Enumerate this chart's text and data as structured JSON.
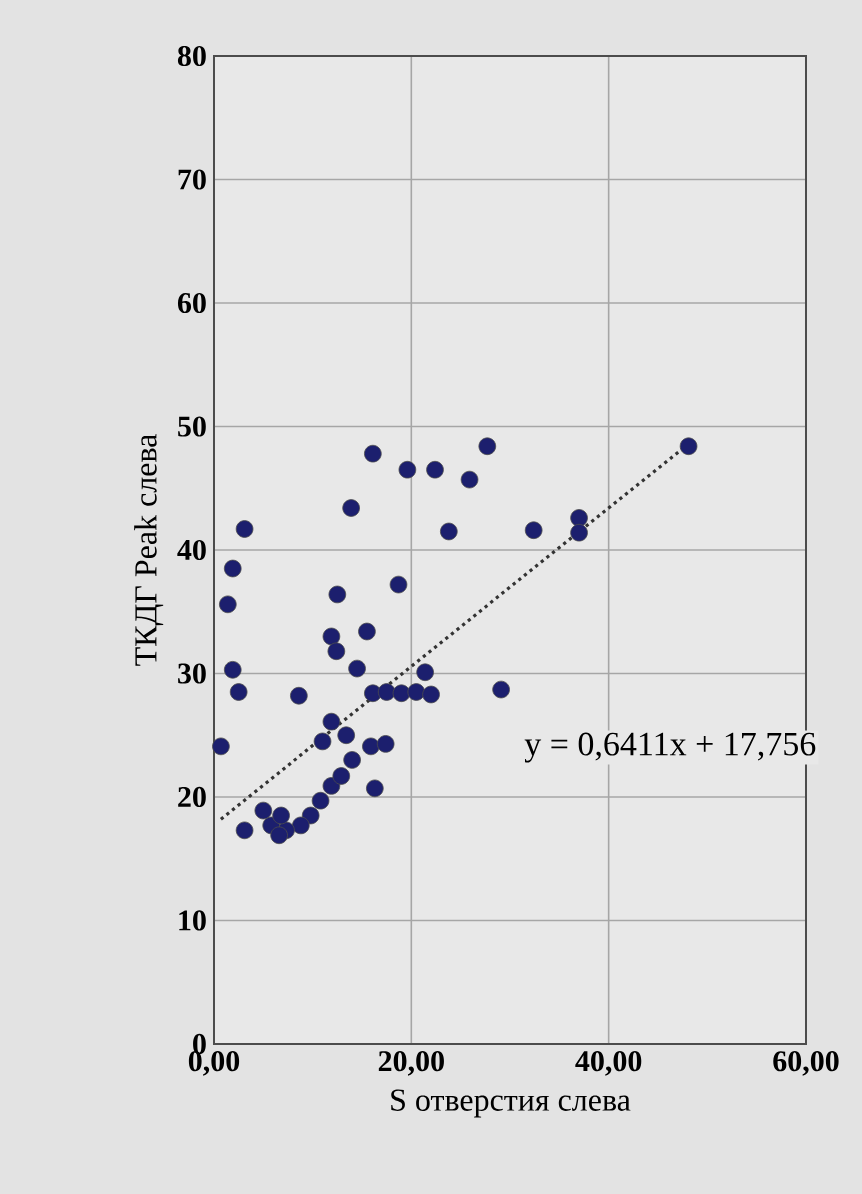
{
  "chart_data": {
    "type": "scatter",
    "xlabel": "S отверстия слева",
    "ylabel": "ТКДГ Peak слева",
    "annotations": [
      "y = 0,6411x + 17,756"
    ],
    "xlim": [
      0,
      60
    ],
    "ylim": [
      0,
      80
    ],
    "xticks": [
      {
        "value": 0,
        "label": "0,00"
      },
      {
        "value": 20,
        "label": "20,00"
      },
      {
        "value": 40,
        "label": "40,00"
      },
      {
        "value": 60,
        "label": "60,00"
      }
    ],
    "yticks": [
      0,
      10,
      20,
      30,
      40,
      50,
      60,
      70,
      80
    ],
    "grid": true,
    "series": [
      {
        "color": "#1c1f6e",
        "marker": "circle",
        "x": [
          0.7,
          1.4,
          1.9,
          1.9,
          2.5,
          3.1,
          3.1,
          8.6,
          12.5,
          11.9,
          12.4,
          13.9,
          14.5,
          15.5,
          16.1,
          16.3,
          18.7,
          19.6,
          22.4,
          23.8,
          25.9,
          27.7,
          29.1,
          32.4,
          37.0,
          37.0,
          48.1,
          16.1,
          17.5,
          19.0,
          20.5,
          22.0,
          21.4,
          11.9,
          11.0,
          13.4,
          14.0,
          15.9,
          17.4,
          11.9,
          10.8,
          9.8,
          8.8,
          7.3,
          5.8,
          5.0,
          6.8,
          6.6,
          12.9
        ],
        "values": [
          24.1,
          35.6,
          38.5,
          30.3,
          28.5,
          41.7,
          17.3,
          28.2,
          36.4,
          33.0,
          31.8,
          43.4,
          30.4,
          33.4,
          47.8,
          20.7,
          37.2,
          46.5,
          46.5,
          41.5,
          45.7,
          48.4,
          28.7,
          41.6,
          42.6,
          41.4,
          48.4,
          28.4,
          28.5,
          28.4,
          28.5,
          28.3,
          30.1,
          26.1,
          24.5,
          25.0,
          23.0,
          24.1,
          24.3,
          20.9,
          19.7,
          18.5,
          17.7,
          17.3,
          17.7,
          18.9,
          18.5,
          16.9,
          21.7
        ]
      },
      {
        "type": "line",
        "color": "#333333",
        "line_style": "dotted",
        "marker": "none",
        "x": [
          0.7,
          48.1
        ],
        "values": [
          18.2,
          48.6
        ]
      }
    ]
  }
}
